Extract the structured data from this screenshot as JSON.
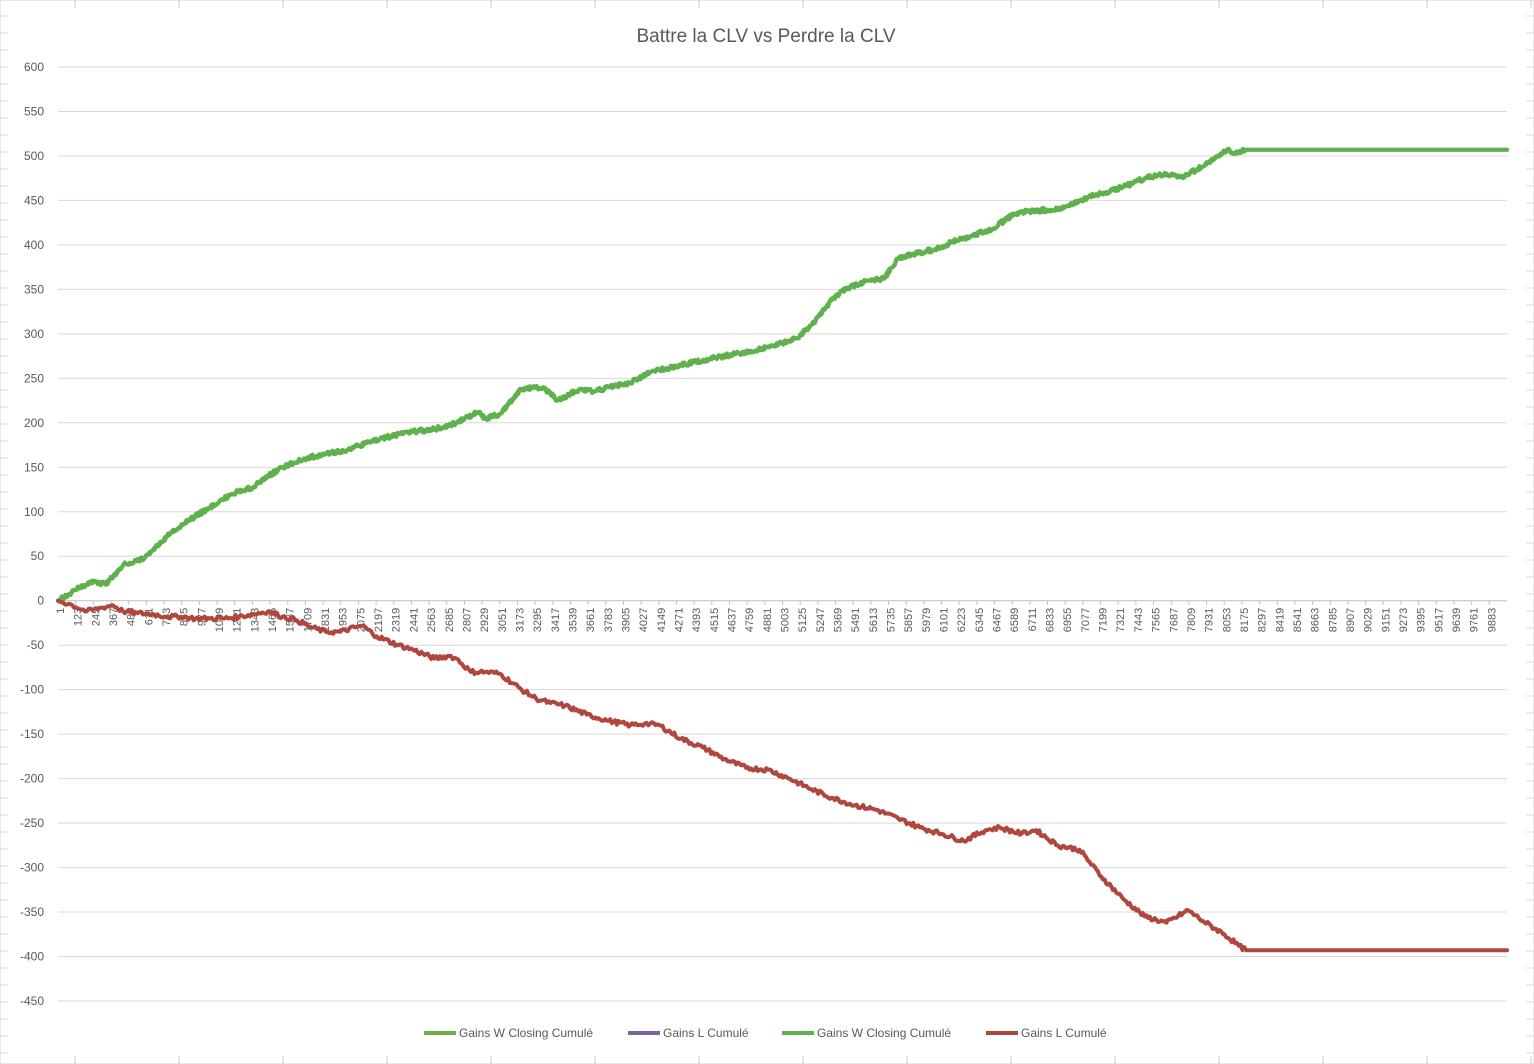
{
  "chart_data": {
    "type": "line",
    "title": "Battre la CLV vs Perdre la CLV",
    "xlabel": "",
    "ylabel": "",
    "ylim": [
      -450,
      600
    ],
    "ytick_step": 50,
    "yticks": [
      "600",
      "550",
      "500",
      "450",
      "400",
      "350",
      "300",
      "250",
      "200",
      "150",
      "100",
      "50",
      "0",
      "-50",
      "-100",
      "-150",
      "-200",
      "-250",
      "-300",
      "-350",
      "-400",
      "-450"
    ],
    "xlim": [
      1,
      10000
    ],
    "x_tick_labels": [
      "1",
      "123",
      "245",
      "367",
      "489",
      "611",
      "733",
      "855",
      "977",
      "1099",
      "1221",
      "1343",
      "1465",
      "1587",
      "1709",
      "1831",
      "1953",
      "2075",
      "2197",
      "2319",
      "2441",
      "2563",
      "2685",
      "2807",
      "2929",
      "3051",
      "3173",
      "3295",
      "3417",
      "3539",
      "3661",
      "3783",
      "3905",
      "4027",
      "4149",
      "4271",
      "4393",
      "4515",
      "4637",
      "4759",
      "4881",
      "5003",
      "5125",
      "5247",
      "5369",
      "5491",
      "5613",
      "5735",
      "5857",
      "5979",
      "6101",
      "6223",
      "6345",
      "6467",
      "6589",
      "6711",
      "6833",
      "6955",
      "7077",
      "7199",
      "7321",
      "7443",
      "7565",
      "7687",
      "7809",
      "7931",
      "8053",
      "8175",
      "8297",
      "8419",
      "8541",
      "8663",
      "8785",
      "8907",
      "9029",
      "9151",
      "9273",
      "9395",
      "9517",
      "9639",
      "9761",
      "9883"
    ],
    "grid": true,
    "legend_position": "bottom",
    "series": [
      {
        "name": "Gains W Closing Cumulé",
        "color": "#70ad47",
        "x": [
          1,
          150,
          250,
          330,
          450,
          600,
          750,
          900,
          1050,
          1200,
          1350,
          1450,
          1550,
          1700,
          1850,
          2000,
          2150,
          2300,
          2450,
          2600,
          2750,
          2900,
          2950,
          3050,
          3200,
          3350,
          3450,
          3600,
          3700,
          3800,
          3950,
          4100,
          4300,
          4500,
          4700,
          4900,
          5100,
          5200,
          5350,
          5450,
          5600,
          5700,
          5800,
          5900,
          6050,
          6200,
          6300,
          6450,
          6600,
          6700,
          6900,
          7050,
          7200,
          7350,
          7500,
          7650,
          7750,
          7900,
          8000,
          8080,
          8120,
          8200,
          10000
        ],
        "y": [
          0,
          15,
          22,
          18,
          40,
          48,
          72,
          90,
          105,
          120,
          128,
          140,
          150,
          160,
          165,
          170,
          178,
          185,
          190,
          193,
          200,
          212,
          205,
          210,
          238,
          240,
          225,
          238,
          235,
          240,
          245,
          258,
          265,
          272,
          278,
          285,
          295,
          310,
          340,
          352,
          360,
          362,
          385,
          390,
          395,
          405,
          410,
          418,
          435,
          438,
          440,
          450,
          458,
          465,
          475,
          480,
          476,
          488,
          500,
          508,
          502,
          507,
          507
        ]
      },
      {
        "name": "Gains L Cumulé",
        "color": "#7e649e",
        "x": [],
        "y": []
      },
      {
        "name": "Gains W Closing Cumulé",
        "color": "#5db14f",
        "x": [
          1,
          150,
          250,
          330,
          450,
          600,
          750,
          900,
          1050,
          1200,
          1350,
          1450,
          1550,
          1700,
          1850,
          2000,
          2150,
          2300,
          2450,
          2600,
          2750,
          2900,
          2950,
          3050,
          3200,
          3350,
          3450,
          3600,
          3700,
          3800,
          3950,
          4100,
          4300,
          4500,
          4700,
          4900,
          5100,
          5200,
          5350,
          5450,
          5600,
          5700,
          5800,
          5900,
          6050,
          6200,
          6300,
          6450,
          6600,
          6700,
          6900,
          7050,
          7200,
          7350,
          7500,
          7650,
          7750,
          7900,
          8000,
          8080,
          8120,
          8200,
          10000
        ],
        "y": [
          0,
          15,
          22,
          18,
          40,
          48,
          72,
          90,
          105,
          120,
          128,
          140,
          150,
          160,
          165,
          170,
          178,
          185,
          190,
          193,
          200,
          212,
          205,
          210,
          238,
          240,
          225,
          238,
          235,
          240,
          245,
          258,
          265,
          272,
          278,
          285,
          295,
          310,
          340,
          352,
          360,
          362,
          385,
          390,
          395,
          405,
          410,
          418,
          435,
          438,
          440,
          450,
          458,
          465,
          475,
          480,
          476,
          488,
          500,
          508,
          502,
          507,
          507
        ]
      },
      {
        "name": "Gains L Cumulé",
        "color": "#b0473f",
        "x": [
          1,
          100,
          200,
          300,
          380,
          450,
          550,
          650,
          750,
          850,
          950,
          1050,
          1150,
          1250,
          1350,
          1450,
          1550,
          1650,
          1750,
          1850,
          1950,
          2050,
          2100,
          2200,
          2350,
          2450,
          2600,
          2700,
          2750,
          2850,
          2950,
          3050,
          3200,
          3300,
          3400,
          3500,
          3650,
          3800,
          3950,
          4050,
          4150,
          4300,
          4450,
          4600,
          4750,
          4900,
          5050,
          5200,
          5350,
          5500,
          5650,
          5800,
          5950,
          6100,
          6250,
          6400,
          6500,
          6650,
          6750,
          6900,
          7050,
          7200,
          7350,
          7500,
          7650,
          7800,
          7900,
          8050,
          8150,
          8200,
          10000
        ],
        "y": [
          0,
          -5,
          -12,
          -8,
          -5,
          -12,
          -14,
          -15,
          -18,
          -18,
          -20,
          -20,
          -20,
          -18,
          -15,
          -12,
          -18,
          -22,
          -30,
          -35,
          -35,
          -30,
          -28,
          -40,
          -50,
          -55,
          -65,
          -62,
          -65,
          -80,
          -80,
          -82,
          -100,
          -110,
          -115,
          -118,
          -128,
          -135,
          -140,
          -138,
          -140,
          -155,
          -165,
          -178,
          -188,
          -190,
          -200,
          -212,
          -222,
          -230,
          -235,
          -245,
          -255,
          -262,
          -270,
          -258,
          -255,
          -262,
          -258,
          -275,
          -280,
          -310,
          -335,
          -355,
          -362,
          -348,
          -360,
          -375,
          -388,
          -393,
          -393
        ]
      }
    ]
  }
}
